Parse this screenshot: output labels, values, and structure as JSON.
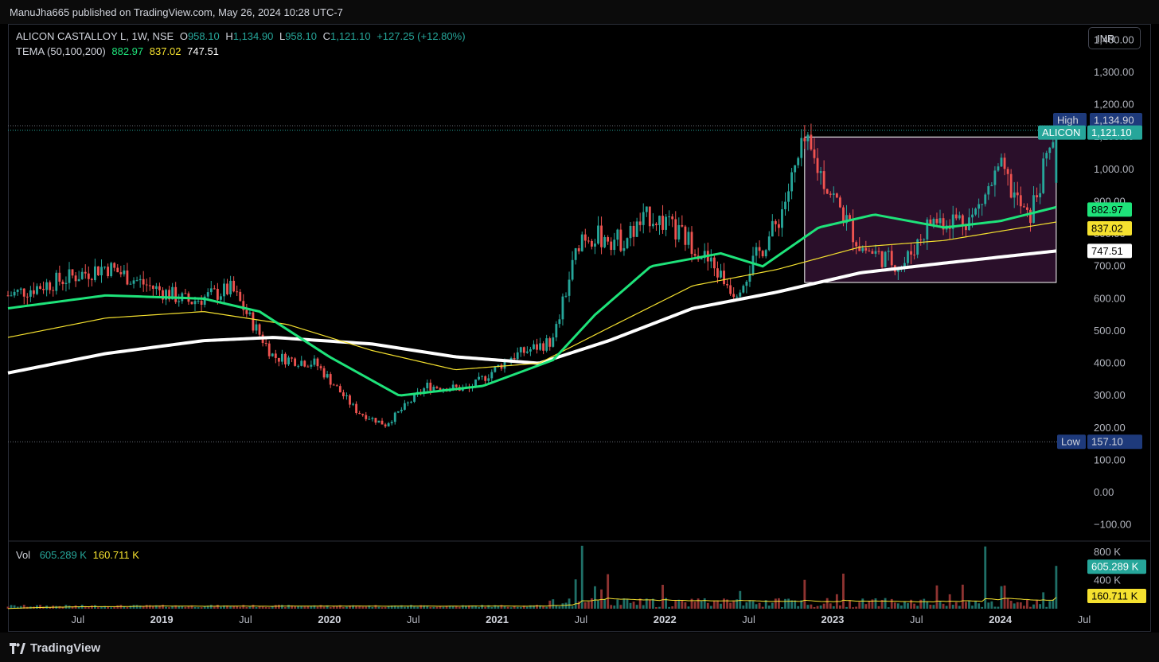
{
  "header": {
    "published": "ManuJha665 published on TradingView.com, May 26, 2024 10:28 UTC-7"
  },
  "legend": {
    "symbol": "ALICON CASTALLOY L, 1W, NSE",
    "o_label": "O",
    "o": "958.10",
    "h_label": "H",
    "h": "1,134.90",
    "l_label": "L",
    "l": "958.10",
    "c_label": "C",
    "c": "1,121.10",
    "change": "+127.25 (+12.80%)",
    "tema_label": "TEMA (50,100,200)",
    "tema50": "882.97",
    "tema100": "837.02",
    "tema200": "747.51",
    "vol_label": "Vol",
    "vol": "605.289 K",
    "vol_ma": "160.711 K"
  },
  "currency": "INR",
  "price_tags": {
    "high_label": "High",
    "high": "1,134.90",
    "last_label": "ALICON",
    "last": "1,121.10",
    "low_label": "Low",
    "low": "157.10",
    "tema50": "882.97",
    "tema100": "837.02",
    "tema200": "747.51",
    "vol": "605.289 K",
    "vol_ma": "160.711 K"
  },
  "y_ticks": [
    "1,400.00",
    "1,300.00",
    "1,200.00",
    "1,100.00",
    "1,000.00",
    "900.00",
    "800.00",
    "700.00",
    "600.00",
    "500.00",
    "400.00",
    "300.00",
    "200.00",
    "100.00",
    "0.00",
    "−100.00"
  ],
  "vol_ticks": [
    "800 K",
    "400 K"
  ],
  "x_ticks": [
    {
      "label": "Jul",
      "bold": false
    },
    {
      "label": "2019",
      "bold": true
    },
    {
      "label": "Jul",
      "bold": false
    },
    {
      "label": "2020",
      "bold": true
    },
    {
      "label": "Jul",
      "bold": false
    },
    {
      "label": "2021",
      "bold": true
    },
    {
      "label": "Jul",
      "bold": false
    },
    {
      "label": "2022",
      "bold": true
    },
    {
      "label": "Jul",
      "bold": false
    },
    {
      "label": "2023",
      "bold": true
    },
    {
      "label": "Jul",
      "bold": false
    },
    {
      "label": "2024",
      "bold": true
    },
    {
      "label": "Jul",
      "bold": false
    }
  ],
  "colors": {
    "up": "#26a69a",
    "down": "#ef5350",
    "tema50": "#1ee37a",
    "tema100": "#f5e12f",
    "tema200": "#ffffff",
    "range_box": "#2a0f2a",
    "tag_blue": "#1e3a7b",
    "bg": "#000000"
  },
  "brand": "TradingView",
  "chart_data": {
    "type": "candlestick",
    "title": "ALICON CASTALLOY L, 1W, NSE",
    "interval": "1W",
    "x_range": [
      "2018-02",
      "2024-07"
    ],
    "ylim": [
      -150,
      1450
    ],
    "high": 1134.9,
    "low": 157.1,
    "last": {
      "open": 958.1,
      "high": 1134.9,
      "low": 958.1,
      "close": 1121.1,
      "change": 127.25,
      "change_pct": 12.8
    },
    "tema": {
      "periods": [
        50,
        100,
        200
      ],
      "last_values": [
        882.97,
        837.02,
        747.51
      ]
    },
    "price_keyframes": [
      [
        "2018-02",
        610
      ],
      [
        "2018-06",
        660
      ],
      [
        "2018-09",
        700
      ],
      [
        "2018-12",
        640
      ],
      [
        "2019-03",
        590
      ],
      [
        "2019-06",
        630
      ],
      [
        "2019-09",
        420
      ],
      [
        "2019-12",
        400
      ],
      [
        "2020-03",
        250
      ],
      [
        "2020-05",
        210
      ],
      [
        "2020-08",
        330
      ],
      [
        "2020-11",
        320
      ],
      [
        "2021-02",
        420
      ],
      [
        "2021-05",
        470
      ],
      [
        "2021-07",
        800
      ],
      [
        "2021-10",
        780
      ],
      [
        "2021-12",
        860
      ],
      [
        "2022-03",
        770
      ],
      [
        "2022-06",
        620
      ],
      [
        "2022-09",
        830
      ],
      [
        "2022-11",
        1080
      ],
      [
        "2023-03",
        760
      ],
      [
        "2023-06",
        700
      ],
      [
        "2023-08",
        840
      ],
      [
        "2023-11",
        850
      ],
      [
        "2024-01",
        1000
      ],
      [
        "2024-03",
        840
      ],
      [
        "2024-05",
        1121.1
      ]
    ],
    "tema50_keyframes": [
      [
        "2018-02",
        570
      ],
      [
        "2018-09",
        610
      ],
      [
        "2019-04",
        600
      ],
      [
        "2019-08",
        560
      ],
      [
        "2020-01",
        420
      ],
      [
        "2020-06",
        300
      ],
      [
        "2020-12",
        330
      ],
      [
        "2021-05",
        410
      ],
      [
        "2021-08",
        550
      ],
      [
        "2021-12",
        700
      ],
      [
        "2022-05",
        740
      ],
      [
        "2022-08",
        700
      ],
      [
        "2022-12",
        820
      ],
      [
        "2023-04",
        860
      ],
      [
        "2023-09",
        820
      ],
      [
        "2024-01",
        840
      ],
      [
        "2024-05",
        882.97
      ]
    ],
    "tema100_keyframes": [
      [
        "2018-02",
        480
      ],
      [
        "2018-09",
        540
      ],
      [
        "2019-04",
        560
      ],
      [
        "2019-10",
        520
      ],
      [
        "2020-04",
        440
      ],
      [
        "2020-10",
        380
      ],
      [
        "2021-04",
        400
      ],
      [
        "2021-09",
        510
      ],
      [
        "2022-03",
        640
      ],
      [
        "2022-09",
        690
      ],
      [
        "2023-03",
        760
      ],
      [
        "2023-09",
        780
      ],
      [
        "2024-05",
        837.02
      ]
    ],
    "tema200_keyframes": [
      [
        "2018-02",
        370
      ],
      [
        "2018-09",
        430
      ],
      [
        "2019-04",
        470
      ],
      [
        "2019-09",
        480
      ],
      [
        "2020-04",
        460
      ],
      [
        "2020-10",
        420
      ],
      [
        "2021-04",
        400
      ],
      [
        "2021-09",
        470
      ],
      [
        "2022-03",
        570
      ],
      [
        "2022-09",
        620
      ],
      [
        "2023-03",
        680
      ],
      [
        "2023-09",
        710
      ],
      [
        "2024-05",
        747.51
      ]
    ],
    "range_box": {
      "x_start": "2022-11",
      "x_end": "2024-05",
      "y_low": 650,
      "y_high": 1100
    },
    "volume": {
      "ylim": [
        0,
        900000
      ],
      "last": 605289,
      "ma_last": 160711,
      "spikes": [
        [
          "2021-07",
          890000
        ],
        [
          "2023-12",
          880000
        ],
        [
          "2024-05",
          605289
        ]
      ]
    }
  }
}
